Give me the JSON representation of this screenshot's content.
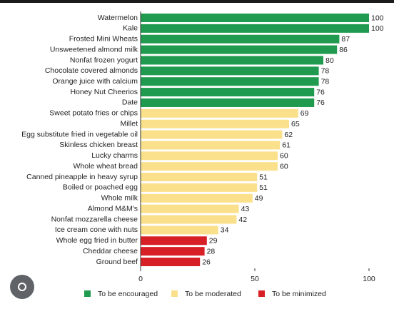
{
  "chart_data": {
    "type": "bar",
    "orientation": "horizontal",
    "categories": [
      "Watermelon",
      "Kale",
      "Frosted Mini Wheats",
      "Unsweetened almond milk",
      "Nonfat frozen yogurt",
      "Chocolate covered almonds",
      "Orange juice with calcium",
      "Honey Nut Cheerios",
      "Date",
      "Sweet potato fries or chips",
      "Millet",
      "Egg substitute fried in vegetable oil",
      "Skinless chicken breast",
      "Lucky charms",
      "Whole wheat bread",
      "Canned pineapple in heavy syrup",
      "Boiled or poached egg",
      "Whole milk",
      "Almond M&M's",
      "Nonfat mozzarella cheese",
      "Ice cream cone with nuts",
      "Whole egg fried in butter",
      "Cheddar cheese",
      "Ground beef"
    ],
    "series": [
      {
        "name": "To be encouraged",
        "color": "#1f9a4e",
        "values": [
          100,
          100,
          87,
          86,
          80,
          78,
          78,
          76,
          76,
          null,
          null,
          null,
          null,
          null,
          null,
          null,
          null,
          null,
          null,
          null,
          null,
          null,
          null,
          null
        ]
      },
      {
        "name": "To be moderated",
        "color": "#fbe08c",
        "values": [
          null,
          null,
          null,
          null,
          null,
          null,
          null,
          null,
          null,
          69,
          65,
          62,
          61,
          60,
          60,
          51,
          51,
          49,
          43,
          42,
          34,
          null,
          null,
          null
        ]
      },
      {
        "name": "To be minimized",
        "color": "#d71f26",
        "values": [
          null,
          null,
          null,
          null,
          null,
          null,
          null,
          null,
          null,
          null,
          null,
          null,
          null,
          null,
          null,
          null,
          null,
          null,
          null,
          null,
          null,
          29,
          28,
          26
        ]
      }
    ],
    "xlim": [
      0,
      100
    ],
    "xticks": [
      0,
      50,
      100
    ],
    "legend": "bottom"
  }
}
